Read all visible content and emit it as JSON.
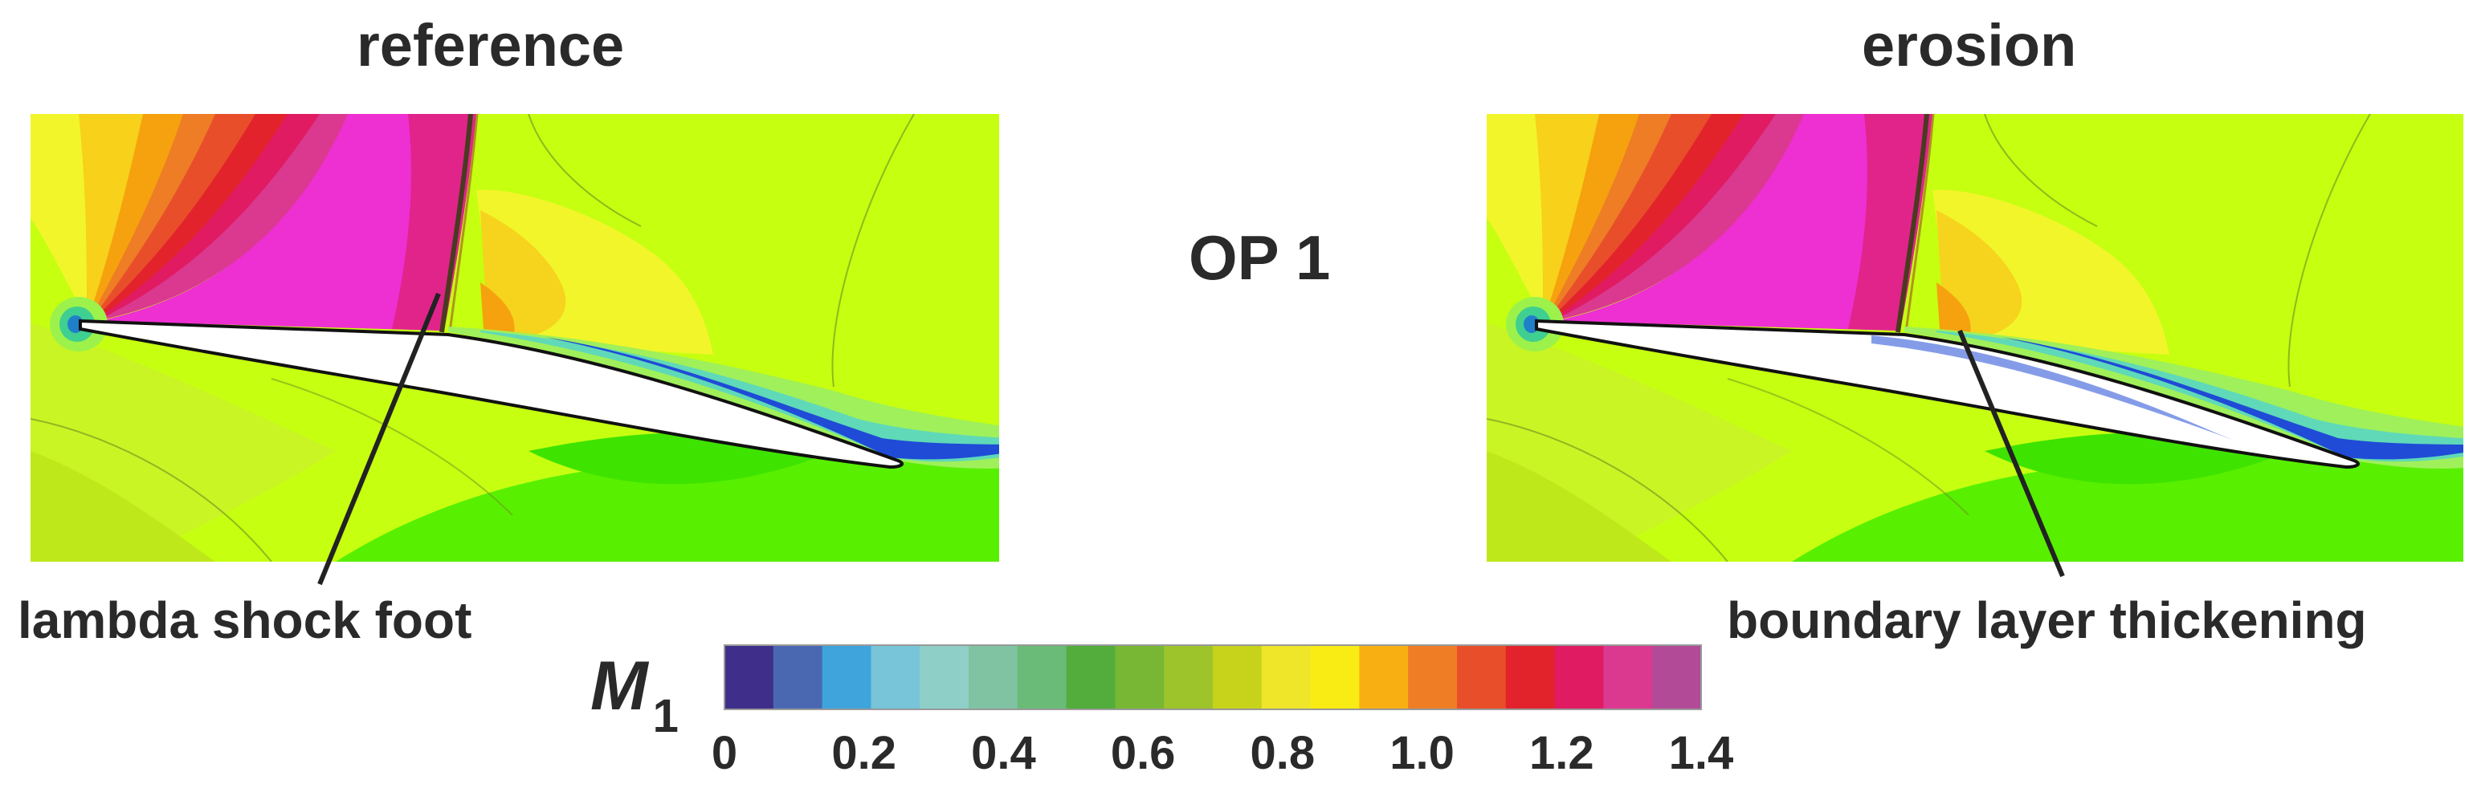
{
  "figure": {
    "left_panel_title": "reference",
    "right_panel_title": "erosion",
    "center_label": "OP 1",
    "left_annotation": "lambda shock foot",
    "right_annotation": "boundary layer thickening"
  },
  "colorbar": {
    "variable": "M",
    "subscript": "1",
    "range": [
      0,
      1.4
    ],
    "ticks": [
      "0",
      "0.2",
      "0.4",
      "0.6",
      "0.8",
      "1.0",
      "1.2",
      "1.4"
    ],
    "colors": [
      "#3f2f8a",
      "#4a68b2",
      "#3fa3dc",
      "#78c4d8",
      "#8ecfc7",
      "#7fc3a2",
      "#6aba78",
      "#52ad3c",
      "#78b733",
      "#9dc42b",
      "#c7d31a",
      "#efe62a",
      "#f9eb14",
      "#f7af12",
      "#ee7d26",
      "#e94e2a",
      "#e2232c",
      "#e01b62",
      "#db3890",
      "#b24a98"
    ]
  },
  "palette": {
    "magenta": "#ee2fd2",
    "lime": "#c6ff10",
    "yellow": "#f2f52a",
    "green": "#58f000",
    "blue": "#1f4bd6",
    "red": "#e3212a",
    "orange": "#f5a20e"
  }
}
